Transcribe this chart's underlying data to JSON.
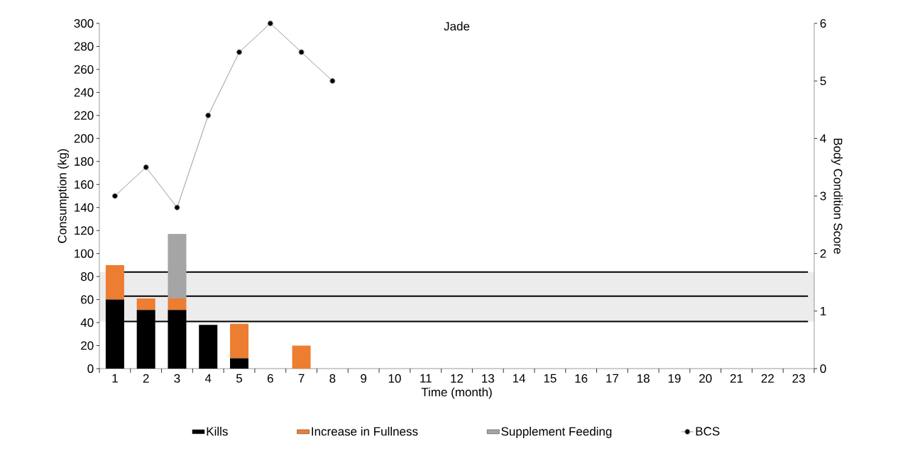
{
  "chart_data": {
    "type": "bar",
    "title": "Jade",
    "xlabel": "Time (month)",
    "ylabel": "Consumption (kg)",
    "y2label": "Body Condition Score",
    "categories": [
      "1",
      "2",
      "3",
      "4",
      "5",
      "6",
      "7",
      "8",
      "9",
      "10",
      "11",
      "12",
      "13",
      "14",
      "15",
      "16",
      "17",
      "18",
      "19",
      "20",
      "21",
      "22",
      "23"
    ],
    "stacked": true,
    "series": [
      {
        "name": "Kills",
        "color": "#000000",
        "values": [
          60,
          51,
          51,
          38,
          9,
          null,
          null,
          null,
          null,
          null,
          null,
          null,
          null,
          null,
          null,
          null,
          null,
          null,
          null,
          null,
          null,
          null,
          null
        ]
      },
      {
        "name": "Increase in Fullness",
        "color": "#ed7d31",
        "values": [
          30,
          10,
          10,
          null,
          30,
          null,
          20,
          null,
          null,
          null,
          null,
          null,
          null,
          null,
          null,
          null,
          null,
          null,
          null,
          null,
          null,
          null,
          null
        ]
      },
      {
        "name": "Supplement Feeding",
        "color": "#a5a5a5",
        "values": [
          null,
          null,
          56,
          null,
          null,
          null,
          null,
          null,
          null,
          null,
          null,
          null,
          null,
          null,
          null,
          null,
          null,
          null,
          null,
          null,
          null,
          null,
          null
        ]
      },
      {
        "name": "BCS",
        "type": "line",
        "axis": "y2",
        "color": "#7f7f7f",
        "marker": "circle",
        "line_style": "solid",
        "values": [
          3.0,
          3.5,
          2.8,
          4.4,
          5.5,
          6.0,
          5.5,
          5.0,
          null,
          null,
          null,
          null,
          null,
          null,
          null,
          null,
          null,
          null,
          null,
          null,
          null,
          null,
          null
        ]
      }
    ],
    "ylim": [
      0,
      300
    ],
    "yticks": [
      0,
      20,
      40,
      60,
      80,
      100,
      120,
      140,
      160,
      180,
      200,
      220,
      240,
      260,
      280,
      300
    ],
    "y2lim": [
      0,
      6
    ],
    "y2ticks": [
      0,
      1,
      2,
      3,
      4,
      5,
      6
    ],
    "ref_lines": [
      {
        "axis": "y",
        "value": 41,
        "color": "#000000"
      },
      {
        "axis": "y",
        "value": 63,
        "color": "#000000"
      },
      {
        "axis": "y",
        "value": 84,
        "color": "#000000"
      }
    ],
    "bands": [
      {
        "axis": "y",
        "from": 41,
        "to": 84,
        "color": "#ececec"
      }
    ],
    "grid": false,
    "legend": "bottom"
  }
}
